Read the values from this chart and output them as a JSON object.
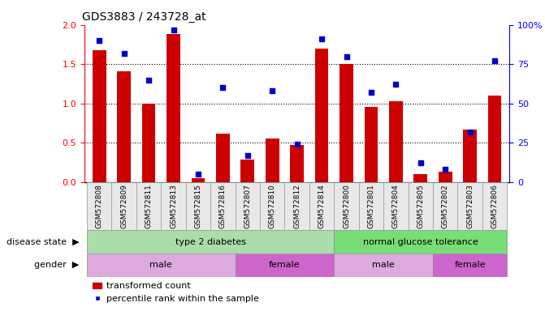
{
  "title": "GDS3883 / 243728_at",
  "samples": [
    "GSM572808",
    "GSM572809",
    "GSM572811",
    "GSM572813",
    "GSM572815",
    "GSM572816",
    "GSM572807",
    "GSM572810",
    "GSM572812",
    "GSM572814",
    "GSM572800",
    "GSM572801",
    "GSM572804",
    "GSM572805",
    "GSM572802",
    "GSM572803",
    "GSM572806"
  ],
  "transformed_count": [
    1.68,
    1.41,
    1.0,
    1.88,
    0.05,
    0.62,
    0.28,
    0.55,
    0.47,
    1.7,
    1.5,
    0.96,
    1.03,
    0.1,
    0.13,
    0.67,
    1.1
  ],
  "percentile_rank": [
    90,
    82,
    65,
    97,
    5,
    60,
    17,
    58,
    24,
    91,
    80,
    57,
    62,
    12,
    8,
    32,
    77
  ],
  "disease_state_ranges": [
    [
      0,
      10
    ],
    [
      10,
      17
    ]
  ],
  "disease_state_labels": [
    "type 2 diabetes",
    "normal glucose tolerance"
  ],
  "disease_state_colors": [
    "#aaddaa",
    "#77dd77"
  ],
  "gender_ranges": [
    [
      0,
      6
    ],
    [
      6,
      10
    ],
    [
      10,
      14
    ],
    [
      14,
      17
    ]
  ],
  "gender_labels": [
    "male",
    "female",
    "male",
    "female"
  ],
  "gender_colors": [
    "#ddaadd",
    "#cc66cc",
    "#ddaadd",
    "#cc66cc"
  ],
  "bar_color": "#cc0000",
  "dot_color": "#0000cc",
  "ylim_left": [
    0,
    2
  ],
  "ylim_right": [
    0,
    100
  ],
  "yticks_left": [
    0,
    0.5,
    1.0,
    1.5,
    2.0
  ],
  "yticks_right": [
    0,
    25,
    50,
    75,
    100
  ],
  "background_color": "#ffffff",
  "label_disease": "disease state",
  "label_gender": "gender",
  "legend_bar": "transformed count",
  "legend_dot": "percentile rank within the sample",
  "title_fontsize": 10,
  "tick_fontsize": 7,
  "label_fontsize": 8,
  "bar_width": 0.55
}
